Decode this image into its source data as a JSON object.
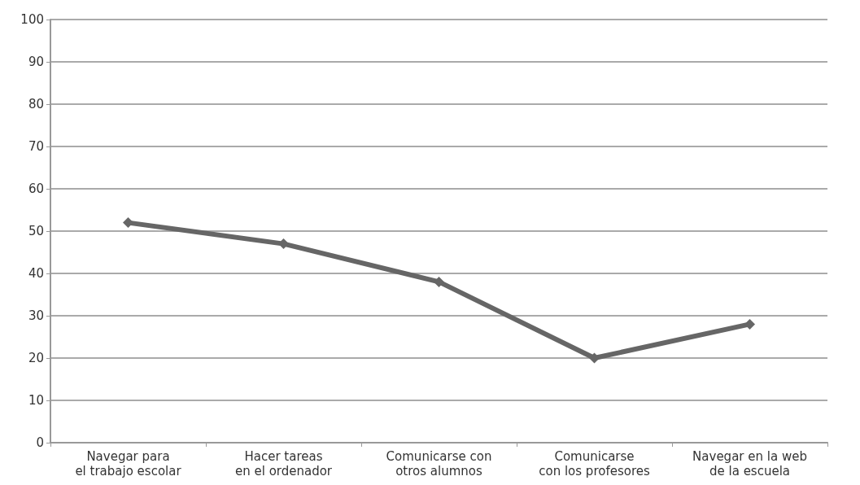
{
  "chart_data": {
    "type": "line",
    "categories": [
      "Navegar para\nel trabajo escolar",
      "Hacer tareas\nen el ordenador",
      "Comunicarse con\notros alumnos",
      "Comunicarse\ncon los profesores",
      "Navegar en la web\nde la escuela"
    ],
    "series": [
      {
        "color": "#666666",
        "values": [
          52,
          47,
          38,
          20,
          28
        ]
      }
    ],
    "ylim": [
      0,
      100
    ],
    "yticks": [
      0,
      10,
      20,
      30,
      40,
      50,
      60,
      70,
      80,
      90,
      100
    ],
    "grid": "y",
    "marker": "diamond",
    "line_style": "solid"
  }
}
